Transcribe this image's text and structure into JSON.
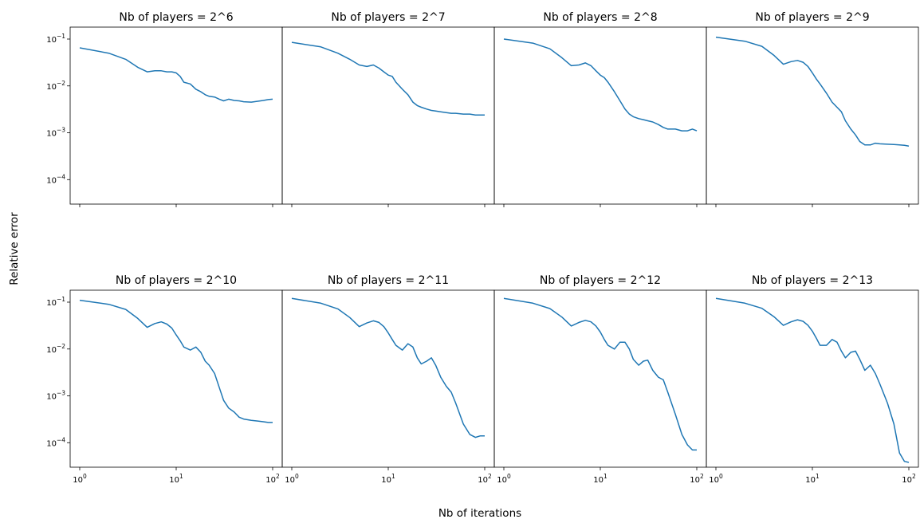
{
  "figure": {
    "xlabel": "Nb of iterations",
    "ylabel": "Relative error",
    "line_color": "#1f77b4"
  },
  "chart_data": [
    {
      "type": "line",
      "title": "Nb of players = 2^6",
      "xscale": "log",
      "yscale": "log",
      "xlim": [
        1,
        100
      ],
      "ylim": [
        3e-05,
        0.18
      ],
      "x": [
        1,
        2,
        3,
        4,
        5,
        6,
        7,
        8,
        9,
        10,
        11,
        12,
        14,
        16,
        18,
        20,
        22,
        25,
        28,
        31,
        35,
        40,
        45,
        50,
        60,
        70,
        80,
        90,
        100
      ],
      "y": [
        0.065,
        0.05,
        0.037,
        0.025,
        0.02,
        0.021,
        0.021,
        0.02,
        0.02,
        0.019,
        0.016,
        0.012,
        0.011,
        0.0085,
        0.0075,
        0.0065,
        0.006,
        0.0058,
        0.0052,
        0.0048,
        0.0052,
        0.0049,
        0.0048,
        0.0046,
        0.0045,
        0.0047,
        0.0049,
        0.0051,
        0.0052
      ]
    },
    {
      "type": "line",
      "title": "Nb of players = 2^7",
      "xscale": "log",
      "yscale": "log",
      "xlim": [
        1,
        100
      ],
      "ylim": [
        3e-05,
        0.18
      ],
      "x": [
        1,
        2,
        3,
        4,
        5,
        6,
        7,
        8,
        9,
        10,
        11,
        12,
        14,
        16,
        18,
        20,
        22,
        25,
        28,
        31,
        35,
        40,
        45,
        50,
        60,
        70,
        80,
        90,
        100
      ],
      "y": [
        0.085,
        0.068,
        0.05,
        0.037,
        0.028,
        0.026,
        0.028,
        0.024,
        0.02,
        0.017,
        0.016,
        0.012,
        0.0085,
        0.0065,
        0.0045,
        0.0038,
        0.0035,
        0.0032,
        0.003,
        0.0029,
        0.0028,
        0.0027,
        0.0026,
        0.0026,
        0.0025,
        0.0025,
        0.0024,
        0.0024,
        0.0024
      ]
    },
    {
      "type": "line",
      "title": "Nb of players = 2^8",
      "xscale": "log",
      "yscale": "log",
      "xlim": [
        1,
        100
      ],
      "ylim": [
        3e-05,
        0.18
      ],
      "x": [
        1,
        2,
        3,
        4,
        5,
        6,
        7,
        8,
        9,
        10,
        11,
        12,
        14,
        16,
        18,
        20,
        22,
        25,
        28,
        31,
        35,
        40,
        45,
        50,
        60,
        70,
        80,
        90,
        100
      ],
      "y": [
        0.1,
        0.082,
        0.062,
        0.04,
        0.027,
        0.028,
        0.031,
        0.027,
        0.021,
        0.017,
        0.015,
        0.012,
        0.0075,
        0.0048,
        0.0032,
        0.0025,
        0.0022,
        0.002,
        0.0019,
        0.0018,
        0.0017,
        0.0015,
        0.0013,
        0.0012,
        0.0012,
        0.0011,
        0.0011,
        0.0012,
        0.0011
      ]
    },
    {
      "type": "line",
      "title": "Nb of players = 2^9",
      "xscale": "log",
      "yscale": "log",
      "xlim": [
        1,
        100
      ],
      "ylim": [
        3e-05,
        0.18
      ],
      "x": [
        1,
        2,
        3,
        4,
        5,
        6,
        7,
        8,
        9,
        10,
        11,
        12,
        14,
        16,
        18,
        20,
        22,
        25,
        28,
        31,
        35,
        40,
        45,
        50,
        60,
        70,
        80,
        90,
        100
      ],
      "y": [
        0.11,
        0.09,
        0.07,
        0.045,
        0.029,
        0.033,
        0.035,
        0.032,
        0.026,
        0.019,
        0.014,
        0.011,
        0.007,
        0.0045,
        0.0035,
        0.0028,
        0.0018,
        0.0012,
        0.0009,
        0.00065,
        0.00055,
        0.00055,
        0.0006,
        0.00058,
        0.00057,
        0.00056,
        0.00055,
        0.00054,
        0.00052
      ]
    },
    {
      "type": "line",
      "title": "Nb of players = 2^10",
      "xscale": "log",
      "yscale": "log",
      "xlim": [
        1,
        100
      ],
      "ylim": [
        3e-05,
        0.18
      ],
      "x": [
        1,
        2,
        3,
        4,
        5,
        6,
        7,
        8,
        9,
        10,
        11,
        12,
        14,
        16,
        18,
        20,
        22,
        25,
        28,
        31,
        35,
        40,
        45,
        50,
        60,
        70,
        80,
        90,
        100
      ],
      "y": [
        0.11,
        0.09,
        0.07,
        0.045,
        0.029,
        0.035,
        0.038,
        0.034,
        0.028,
        0.02,
        0.015,
        0.011,
        0.0095,
        0.011,
        0.0085,
        0.0055,
        0.0045,
        0.003,
        0.0015,
        0.0008,
        0.00055,
        0.00045,
        0.00035,
        0.00032,
        0.0003,
        0.00029,
        0.00028,
        0.00027,
        0.00027
      ]
    },
    {
      "type": "line",
      "title": "Nb of players = 2^11",
      "xscale": "log",
      "yscale": "log",
      "xlim": [
        1,
        100
      ],
      "ylim": [
        3e-05,
        0.18
      ],
      "x": [
        1,
        2,
        3,
        4,
        5,
        6,
        7,
        8,
        9,
        10,
        11,
        12,
        14,
        16,
        18,
        20,
        22,
        25,
        28,
        31,
        35,
        40,
        45,
        50,
        60,
        70,
        80,
        90,
        100
      ],
      "y": [
        0.12,
        0.095,
        0.072,
        0.047,
        0.03,
        0.036,
        0.04,
        0.037,
        0.03,
        0.022,
        0.016,
        0.012,
        0.0095,
        0.013,
        0.011,
        0.0065,
        0.0048,
        0.0055,
        0.0065,
        0.0045,
        0.0025,
        0.0016,
        0.0012,
        0.0007,
        0.00025,
        0.00015,
        0.00013,
        0.00014,
        0.00014
      ]
    },
    {
      "type": "line",
      "title": "Nb of players = 2^12",
      "xscale": "log",
      "yscale": "log",
      "xlim": [
        1,
        100
      ],
      "ylim": [
        3e-05,
        0.18
      ],
      "x": [
        1,
        2,
        3,
        4,
        5,
        6,
        7,
        8,
        9,
        10,
        11,
        12,
        14,
        16,
        18,
        20,
        22,
        25,
        28,
        31,
        35,
        40,
        45,
        50,
        60,
        70,
        80,
        90,
        100
      ],
      "y": [
        0.12,
        0.095,
        0.073,
        0.048,
        0.031,
        0.037,
        0.041,
        0.038,
        0.031,
        0.023,
        0.016,
        0.012,
        0.01,
        0.014,
        0.014,
        0.01,
        0.006,
        0.0045,
        0.0055,
        0.0058,
        0.0035,
        0.0025,
        0.0022,
        0.0012,
        0.0004,
        0.00015,
        9e-05,
        7e-05,
        7e-05
      ]
    },
    {
      "type": "line",
      "title": "Nb of players = 2^13",
      "xscale": "log",
      "yscale": "log",
      "xlim": [
        1,
        100
      ],
      "ylim": [
        3e-05,
        0.18
      ],
      "x": [
        1,
        2,
        3,
        4,
        5,
        6,
        7,
        8,
        9,
        10,
        11,
        12,
        14,
        16,
        18,
        20,
        22,
        25,
        28,
        31,
        35,
        40,
        45,
        50,
        60,
        70,
        80,
        90,
        100
      ],
      "y": [
        0.12,
        0.095,
        0.074,
        0.049,
        0.032,
        0.038,
        0.042,
        0.039,
        0.032,
        0.024,
        0.017,
        0.012,
        0.012,
        0.016,
        0.014,
        0.009,
        0.0065,
        0.0085,
        0.009,
        0.006,
        0.0035,
        0.0045,
        0.003,
        0.0018,
        0.0007,
        0.00025,
        6e-05,
        4e-05,
        3.8e-05
      ]
    }
  ],
  "ticks": {
    "x": [
      {
        "value": 1,
        "label": "10",
        "exp": "0"
      },
      {
        "value": 10,
        "label": "10",
        "exp": "1"
      },
      {
        "value": 100,
        "label": "10",
        "exp": "2"
      }
    ],
    "y": [
      {
        "value": 0.1,
        "label": "10",
        "exp": "−1"
      },
      {
        "value": 0.01,
        "label": "10",
        "exp": "−2"
      },
      {
        "value": 0.001,
        "label": "10",
        "exp": "−3"
      },
      {
        "value": 0.0001,
        "label": "10",
        "exp": "−4"
      }
    ]
  }
}
